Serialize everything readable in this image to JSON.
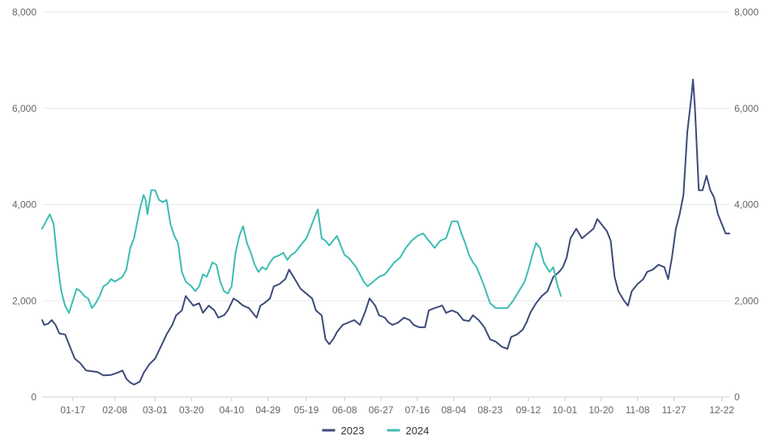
{
  "chart_data": {
    "type": "line",
    "title": "",
    "xlabel": "",
    "ylabel": "",
    "ylim": [
      0,
      8000
    ],
    "y_ticks": [
      0,
      2000,
      4000,
      6000,
      8000
    ],
    "y_tick_labels": [
      "0",
      "2,000",
      "4,000",
      "6,000",
      "8,000"
    ],
    "right_axis": {
      "ylim": [
        0,
        8000
      ],
      "tick_labels": [
        "0",
        "2,000",
        "4,000",
        "6,000",
        "8,000"
      ]
    },
    "x_tick_labels": [
      "01-17",
      "02-08",
      "03-01",
      "03-20",
      "04-10",
      "04-29",
      "05-19",
      "06-08",
      "06-27",
      "07-16",
      "08-04",
      "08-23",
      "09-12",
      "10-01",
      "10-20",
      "11-08",
      "11-27",
      "12-22"
    ],
    "x_tick_positions": [
      17,
      39,
      60,
      79,
      100,
      119,
      139,
      159,
      178,
      197,
      216,
      235,
      255,
      274,
      293,
      312,
      331,
      356
    ],
    "x_domain": [
      1,
      360
    ],
    "grid": true,
    "legend_position": "bottom-center",
    "series": [
      {
        "name": "2023",
        "color": "#3d4a7a",
        "points": [
          [
            1,
            1600
          ],
          [
            2,
            1500
          ],
          [
            4,
            1520
          ],
          [
            6,
            1600
          ],
          [
            8,
            1500
          ],
          [
            10,
            1320
          ],
          [
            13,
            1300
          ],
          [
            16,
            1000
          ],
          [
            18,
            800
          ],
          [
            21,
            700
          ],
          [
            24,
            550
          ],
          [
            30,
            520
          ],
          [
            33,
            450
          ],
          [
            37,
            460
          ],
          [
            40,
            500
          ],
          [
            43,
            550
          ],
          [
            45,
            380
          ],
          [
            47,
            300
          ],
          [
            49,
            260
          ],
          [
            52,
            320
          ],
          [
            54,
            500
          ],
          [
            57,
            680
          ],
          [
            60,
            800
          ],
          [
            63,
            1050
          ],
          [
            66,
            1300
          ],
          [
            69,
            1500
          ],
          [
            71,
            1700
          ],
          [
            74,
            1800
          ],
          [
            76,
            2100
          ],
          [
            77,
            2050
          ],
          [
            80,
            1900
          ],
          [
            83,
            1950
          ],
          [
            85,
            1750
          ],
          [
            88,
            1900
          ],
          [
            91,
            1800
          ],
          [
            93,
            1650
          ],
          [
            96,
            1700
          ],
          [
            98,
            1800
          ],
          [
            101,
            2050
          ],
          [
            103,
            2000
          ],
          [
            106,
            1900
          ],
          [
            109,
            1850
          ],
          [
            112,
            1700
          ],
          [
            113,
            1650
          ],
          [
            115,
            1900
          ],
          [
            117,
            1950
          ],
          [
            120,
            2050
          ],
          [
            122,
            2300
          ],
          [
            125,
            2350
          ],
          [
            128,
            2450
          ],
          [
            130,
            2650
          ],
          [
            133,
            2450
          ],
          [
            136,
            2250
          ],
          [
            139,
            2150
          ],
          [
            142,
            2050
          ],
          [
            144,
            1800
          ],
          [
            147,
            1700
          ],
          [
            149,
            1200
          ],
          [
            151,
            1100
          ],
          [
            153,
            1200
          ],
          [
            155,
            1350
          ],
          [
            158,
            1500
          ],
          [
            161,
            1550
          ],
          [
            164,
            1600
          ],
          [
            167,
            1500
          ],
          [
            170,
            1800
          ],
          [
            172,
            2050
          ],
          [
            175,
            1900
          ],
          [
            177,
            1700
          ],
          [
            180,
            1650
          ],
          [
            182,
            1550
          ],
          [
            184,
            1500
          ],
          [
            187,
            1550
          ],
          [
            190,
            1650
          ],
          [
            193,
            1600
          ],
          [
            195,
            1500
          ],
          [
            198,
            1450
          ],
          [
            201,
            1450
          ],
          [
            203,
            1800
          ],
          [
            206,
            1850
          ],
          [
            210,
            1900
          ],
          [
            212,
            1750
          ],
          [
            215,
            1800
          ],
          [
            218,
            1750
          ],
          [
            221,
            1600
          ],
          [
            224,
            1580
          ],
          [
            226,
            1700
          ],
          [
            229,
            1600
          ],
          [
            232,
            1450
          ],
          [
            235,
            1200
          ],
          [
            238,
            1150
          ],
          [
            241,
            1050
          ],
          [
            244,
            1000
          ],
          [
            246,
            1250
          ],
          [
            249,
            1300
          ],
          [
            252,
            1400
          ],
          [
            254,
            1550
          ],
          [
            256,
            1750
          ],
          [
            259,
            1950
          ],
          [
            262,
            2100
          ],
          [
            265,
            2200
          ],
          [
            268,
            2500
          ],
          [
            271,
            2600
          ],
          [
            273,
            2700
          ],
          [
            275,
            2900
          ],
          [
            277,
            3300
          ],
          [
            280,
            3500
          ],
          [
            283,
            3300
          ],
          [
            286,
            3400
          ],
          [
            289,
            3500
          ],
          [
            291,
            3700
          ],
          [
            293,
            3600
          ],
          [
            296,
            3450
          ],
          [
            298,
            3250
          ],
          [
            300,
            2500
          ],
          [
            302,
            2200
          ],
          [
            305,
            2000
          ],
          [
            307,
            1900
          ],
          [
            309,
            2200
          ],
          [
            312,
            2350
          ],
          [
            315,
            2450
          ],
          [
            317,
            2600
          ],
          [
            320,
            2650
          ],
          [
            323,
            2750
          ],
          [
            326,
            2700
          ],
          [
            328,
            2450
          ],
          [
            330,
            2900
          ],
          [
            332,
            3500
          ],
          [
            334,
            3800
          ],
          [
            336,
            4200
          ],
          [
            338,
            5500
          ],
          [
            340,
            6200
          ],
          [
            341,
            6600
          ],
          [
            342,
            6000
          ],
          [
            344,
            4300
          ],
          [
            346,
            4300
          ],
          [
            348,
            4600
          ],
          [
            350,
            4300
          ],
          [
            352,
            4150
          ],
          [
            354,
            3800
          ],
          [
            356,
            3600
          ],
          [
            358,
            3400
          ],
          [
            360,
            3400
          ]
        ]
      },
      {
        "name": "2024",
        "color": "#3dbcb3",
        "points": [
          [
            1,
            3500
          ],
          [
            3,
            3650
          ],
          [
            5,
            3800
          ],
          [
            7,
            3600
          ],
          [
            9,
            2800
          ],
          [
            11,
            2200
          ],
          [
            13,
            1900
          ],
          [
            15,
            1750
          ],
          [
            17,
            2000
          ],
          [
            19,
            2250
          ],
          [
            21,
            2200
          ],
          [
            23,
            2100
          ],
          [
            25,
            2050
          ],
          [
            27,
            1850
          ],
          [
            29,
            1950
          ],
          [
            31,
            2100
          ],
          [
            33,
            2300
          ],
          [
            35,
            2350
          ],
          [
            37,
            2450
          ],
          [
            39,
            2400
          ],
          [
            41,
            2450
          ],
          [
            43,
            2500
          ],
          [
            45,
            2650
          ],
          [
            47,
            3100
          ],
          [
            49,
            3300
          ],
          [
            52,
            3900
          ],
          [
            54,
            4200
          ],
          [
            55,
            4100
          ],
          [
            56,
            3800
          ],
          [
            58,
            4300
          ],
          [
            60,
            4300
          ],
          [
            62,
            4100
          ],
          [
            64,
            4050
          ],
          [
            66,
            4100
          ],
          [
            68,
            3600
          ],
          [
            70,
            3350
          ],
          [
            72,
            3200
          ],
          [
            74,
            2600
          ],
          [
            76,
            2400
          ],
          [
            79,
            2300
          ],
          [
            81,
            2200
          ],
          [
            83,
            2300
          ],
          [
            85,
            2550
          ],
          [
            87,
            2500
          ],
          [
            90,
            2800
          ],
          [
            92,
            2750
          ],
          [
            94,
            2400
          ],
          [
            96,
            2200
          ],
          [
            98,
            2150
          ],
          [
            100,
            2300
          ],
          [
            102,
            3000
          ],
          [
            104,
            3350
          ],
          [
            106,
            3550
          ],
          [
            108,
            3200
          ],
          [
            110,
            3000
          ],
          [
            112,
            2750
          ],
          [
            114,
            2600
          ],
          [
            116,
            2700
          ],
          [
            118,
            2650
          ],
          [
            120,
            2800
          ],
          [
            122,
            2900
          ],
          [
            125,
            2950
          ],
          [
            127,
            3000
          ],
          [
            129,
            2850
          ],
          [
            131,
            2950
          ],
          [
            133,
            3000
          ],
          [
            135,
            3100
          ],
          [
            137,
            3200
          ],
          [
            139,
            3300
          ],
          [
            141,
            3500
          ],
          [
            143,
            3700
          ],
          [
            145,
            3900
          ],
          [
            147,
            3300
          ],
          [
            149,
            3250
          ],
          [
            151,
            3150
          ],
          [
            153,
            3250
          ],
          [
            155,
            3350
          ],
          [
            157,
            3150
          ],
          [
            159,
            2950
          ],
          [
            161,
            2900
          ],
          [
            163,
            2800
          ],
          [
            165,
            2700
          ],
          [
            167,
            2550
          ],
          [
            169,
            2400
          ],
          [
            171,
            2300
          ],
          [
            174,
            2400
          ],
          [
            177,
            2500
          ],
          [
            180,
            2550
          ],
          [
            182,
            2650
          ],
          [
            185,
            2800
          ],
          [
            188,
            2900
          ],
          [
            191,
            3100
          ],
          [
            194,
            3250
          ],
          [
            197,
            3350
          ],
          [
            200,
            3400
          ],
          [
            203,
            3250
          ],
          [
            206,
            3100
          ],
          [
            209,
            3250
          ],
          [
            212,
            3300
          ],
          [
            215,
            3650
          ],
          [
            218,
            3650
          ],
          [
            220,
            3400
          ],
          [
            222,
            3200
          ],
          [
            224,
            2950
          ],
          [
            226,
            2800
          ],
          [
            228,
            2700
          ],
          [
            230,
            2500
          ],
          [
            232,
            2300
          ],
          [
            235,
            1950
          ],
          [
            238,
            1850
          ],
          [
            241,
            1850
          ],
          [
            244,
            1850
          ],
          [
            247,
            2000
          ],
          [
            250,
            2200
          ],
          [
            253,
            2400
          ],
          [
            255,
            2650
          ],
          [
            257,
            2950
          ],
          [
            259,
            3200
          ],
          [
            261,
            3100
          ],
          [
            263,
            2800
          ],
          [
            266,
            2600
          ],
          [
            268,
            2700
          ],
          [
            270,
            2350
          ],
          [
            272,
            2100
          ]
        ]
      }
    ]
  }
}
